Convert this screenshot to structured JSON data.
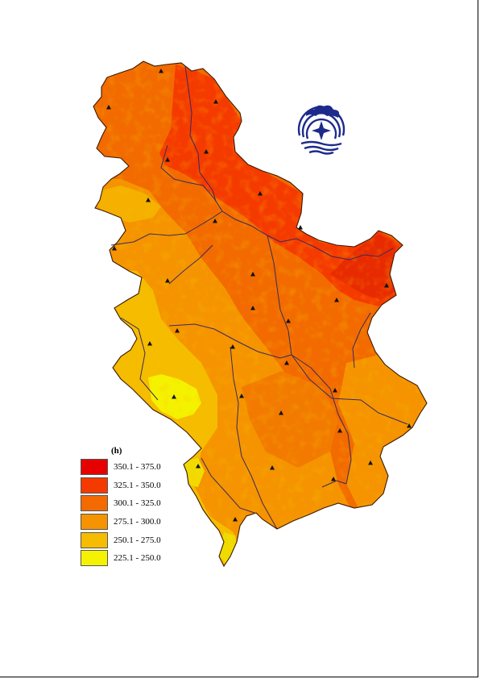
{
  "legend": {
    "title": "(h)",
    "classes": [
      {
        "label": "350.1 - 375.0",
        "color": "#e60000"
      },
      {
        "label": "325.1 - 350.0",
        "color": "#f53a00"
      },
      {
        "label": "300.1 - 325.0",
        "color": "#f26a00"
      },
      {
        "label": "275.1 - 300.0",
        "color": "#f59300"
      },
      {
        "label": "250.1 - 275.0",
        "color": "#f5bc00"
      },
      {
        "label": "225.1 - 250.0",
        "color": "#f5f200"
      }
    ]
  },
  "map": {
    "outline_color": "#3a1a00",
    "river_color": "#3a2a5a",
    "station_marker": "triangle-icon",
    "logo_icon": "institute-logo-icon",
    "logo_color": "#1c2a8c"
  }
}
